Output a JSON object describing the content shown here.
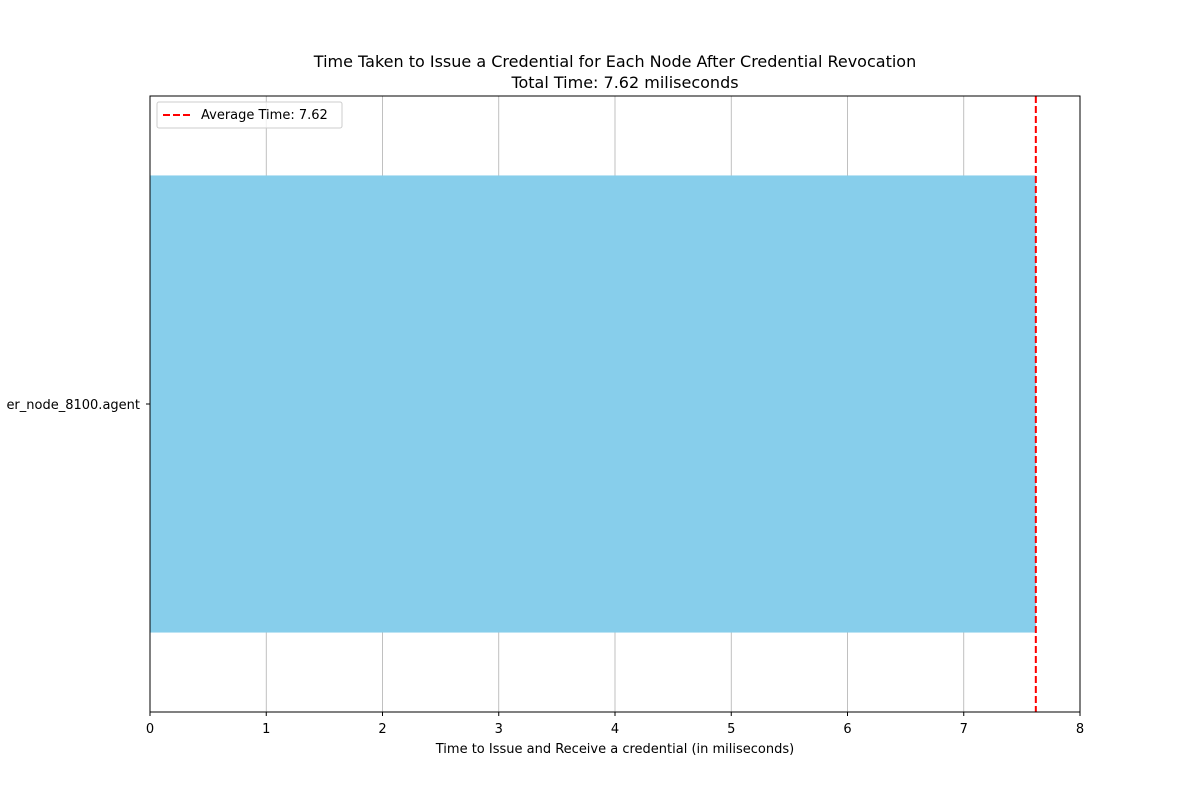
{
  "chart_data": {
    "type": "bar",
    "orientation": "horizontal",
    "title": "Time Taken to Issue a Credential for Each Node After Credential Revocation",
    "subtitle": "Total Time: 7.62 miliseconds",
    "xlabel": "Time to Issue and Receive a credential (in miliseconds)",
    "ylabel": "",
    "categories": [
      "er_node_8100.agent"
    ],
    "values": [
      7.62
    ],
    "xlim": [
      0,
      8
    ],
    "xticks": [
      0,
      1,
      2,
      3,
      4,
      5,
      6,
      7,
      8
    ],
    "grid": "vertical",
    "bar_color": "#87ceeb",
    "reference_line": {
      "value": 7.62,
      "label": "Average Time: 7.62",
      "color": "#ff0000",
      "style": "dashed"
    },
    "legend": {
      "placement": "top-left",
      "entries": [
        "Average Time: 7.62"
      ]
    }
  }
}
